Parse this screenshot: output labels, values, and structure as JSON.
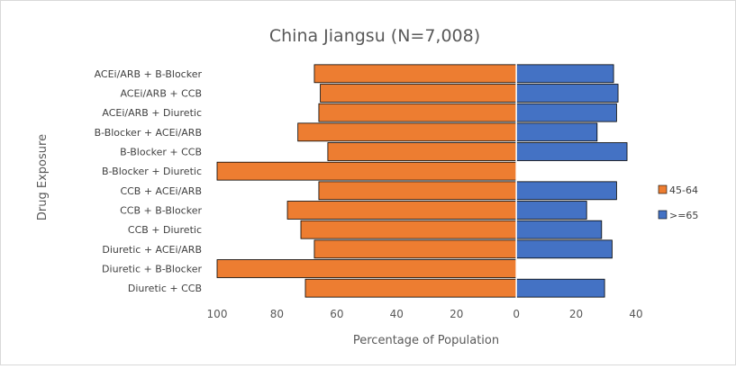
{
  "chart_data": {
    "type": "bar",
    "orientation": "horizontal",
    "layout": "butterfly",
    "title": "China Jiangsu (N=7,008)",
    "xlabel": "Percentage of Population",
    "ylabel": "Drug Exposure",
    "xlim": [
      -100,
      40
    ],
    "x_ticks": [
      {
        "value": -100,
        "label": "100"
      },
      {
        "value": -80,
        "label": "80"
      },
      {
        "value": -60,
        "label": "60"
      },
      {
        "value": -40,
        "label": "40"
      },
      {
        "value": -20,
        "label": "20"
      },
      {
        "value": 0,
        "label": "0"
      },
      {
        "value": 20,
        "label": "20"
      },
      {
        "value": 40,
        "label": "40"
      }
    ],
    "grid": false,
    "legend_position": "right",
    "categories": [
      "ACEi/ARB + B-Blocker",
      "ACEi/ARB + CCB",
      "ACEi/ARB + Diuretic",
      "B-Blocker + ACEi/ARB",
      "B-Blocker + CCB",
      "B-Blocker + Diuretic",
      "CCB + ACEi/ARB",
      "CCB + B-Blocker",
      "CCB + Diuretic",
      "Diuretic + ACEi/ARB",
      "Diuretic + B-Blocker",
      "Diuretic + CCB"
    ],
    "series": [
      {
        "name": "45-64",
        "color": "#ed7d31",
        "side": "left",
        "values": [
          67.5,
          65.5,
          66,
          73,
          63,
          100,
          66,
          76.5,
          72,
          67.5,
          100,
          70.5
        ]
      },
      {
        "name": ">=65",
        "color": "#4472c4",
        "side": "right",
        "values": [
          32.5,
          34,
          33.5,
          27,
          37,
          0,
          33.5,
          23.5,
          28.5,
          32,
          0,
          29.5
        ]
      }
    ]
  }
}
